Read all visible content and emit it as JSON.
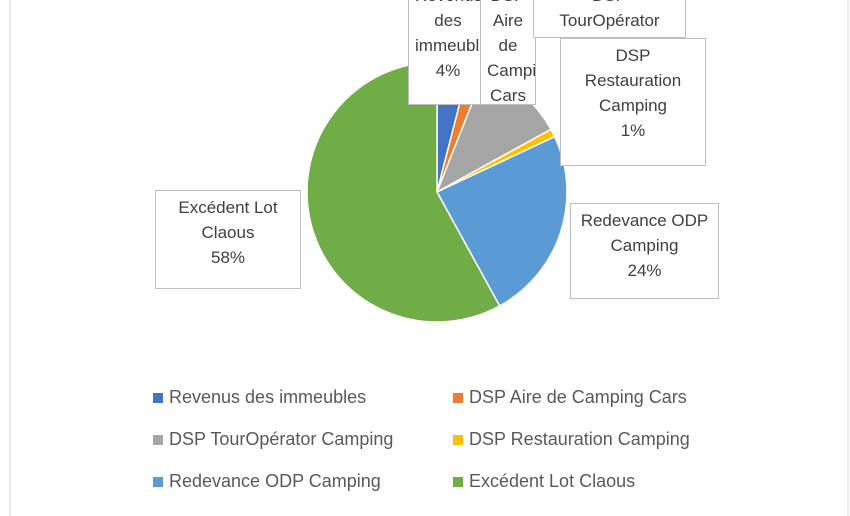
{
  "chart_data": {
    "type": "pie",
    "categories": [
      "Revenus des immeubles",
      "DSP Aire de Camping Cars",
      "DSP TourOpérator Camping",
      "DSP Restauration Camping",
      "Redevance ODP Camping",
      "Excédent Lot Claous"
    ],
    "values": [
      4,
      2,
      11,
      1,
      24,
      58
    ],
    "value_labels": [
      "4%",
      null,
      null,
      "1%",
      "24%",
      "58%"
    ],
    "colors": [
      "#4472c4",
      "#ed7d31",
      "#a5a5a5",
      "#ffc000",
      "#5b9bd5",
      "#70ad47"
    ],
    "legend": "bottom"
  }
}
